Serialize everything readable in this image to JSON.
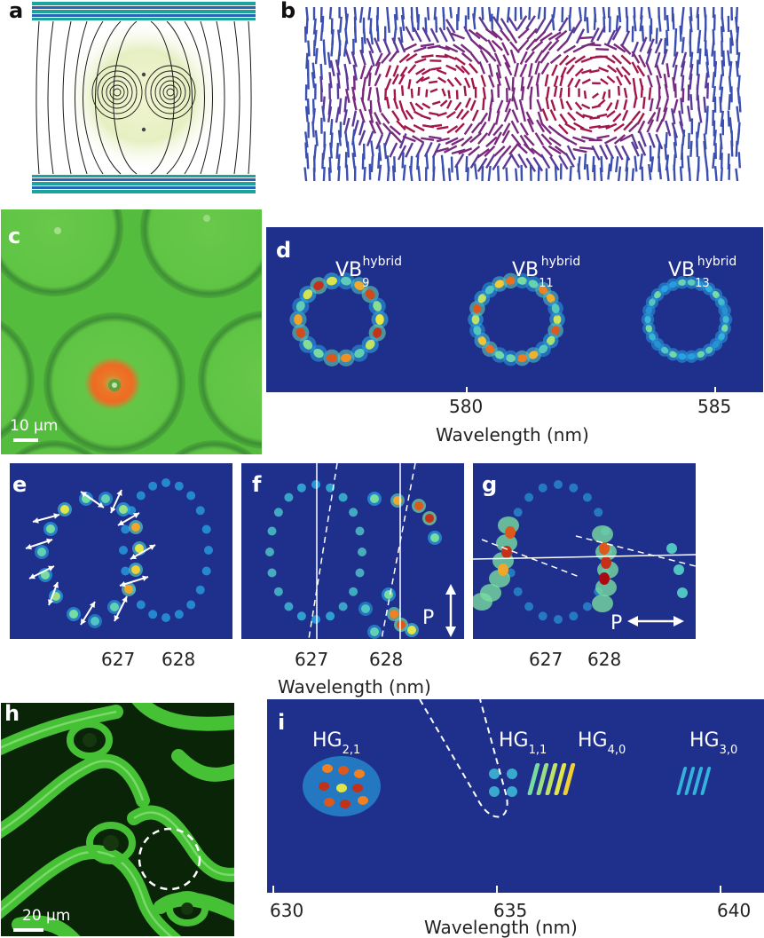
{
  "panels": {
    "a": {
      "label": "a"
    },
    "b": {
      "label": "b"
    },
    "c": {
      "label": "c",
      "scale_bar": "10 µm"
    },
    "d": {
      "label": "d",
      "modes": [
        {
          "base": "VB",
          "sub": "9",
          "sup": "hybrid"
        },
        {
          "base": "VB",
          "sub": "11",
          "sup": "hybrid"
        },
        {
          "base": "VB",
          "sub": "13",
          "sup": "hybrid"
        }
      ],
      "ticks": [
        "580",
        "585"
      ],
      "xlabel": "Wavelength (nm)"
    },
    "e": {
      "label": "e",
      "ticks": [
        "627",
        "628"
      ]
    },
    "f": {
      "label": "f",
      "ticks": [
        "627",
        "628"
      ],
      "polarizer": "P"
    },
    "g": {
      "label": "g",
      "ticks": [
        "627",
        "628"
      ],
      "polarizer": "P"
    },
    "efg_xlabel": "Wavelength (nm)",
    "h": {
      "label": "h",
      "scale_bar": "20 µm"
    },
    "i": {
      "label": "i",
      "modes": [
        {
          "base": "HG",
          "sub": "2,1"
        },
        {
          "base": "HG",
          "sub": "1,1"
        },
        {
          "base": "HG",
          "sub": "4,0"
        },
        {
          "base": "HG",
          "sub": "3,0"
        }
      ],
      "ticks": [
        "630",
        "635",
        "640"
      ],
      "xlabel": "Wavelength (nm)"
    }
  },
  "colors": {
    "mirror_teal": "#1aa59c",
    "mirror_blue": "#2a63b8",
    "spectrum_bg": "#1e2f8c",
    "microscope_green": "#4fbf3a",
    "director_blue": "#3b4fb0",
    "director_red": "#a3164a"
  }
}
